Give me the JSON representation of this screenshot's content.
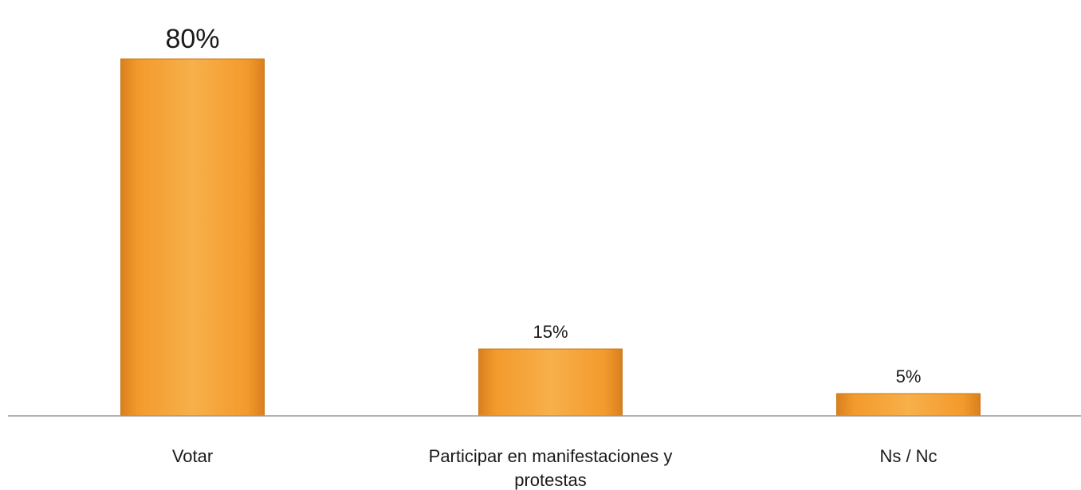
{
  "chart_data": {
    "type": "bar",
    "categories": [
      "Votar",
      "Participar en manifestaciones y protestas",
      "Ns / Nc"
    ],
    "category_label_lines": [
      [
        "Votar"
      ],
      [
        "Participar en manifestaciones y",
        "protestas"
      ],
      [
        "Ns / Nc"
      ]
    ],
    "values": [
      80,
      15,
      5
    ],
    "data_labels": [
      "80%",
      "15%",
      "5%"
    ],
    "title": "",
    "xlabel": "",
    "ylabel": "",
    "ylim": [
      0,
      80
    ],
    "grid": false,
    "legend": "none",
    "bar_color": "#f39a2c",
    "bar_color_light": "#f7b04a",
    "bar_color_dark": "#d9801f",
    "axis_color": "#9a9a9a"
  }
}
